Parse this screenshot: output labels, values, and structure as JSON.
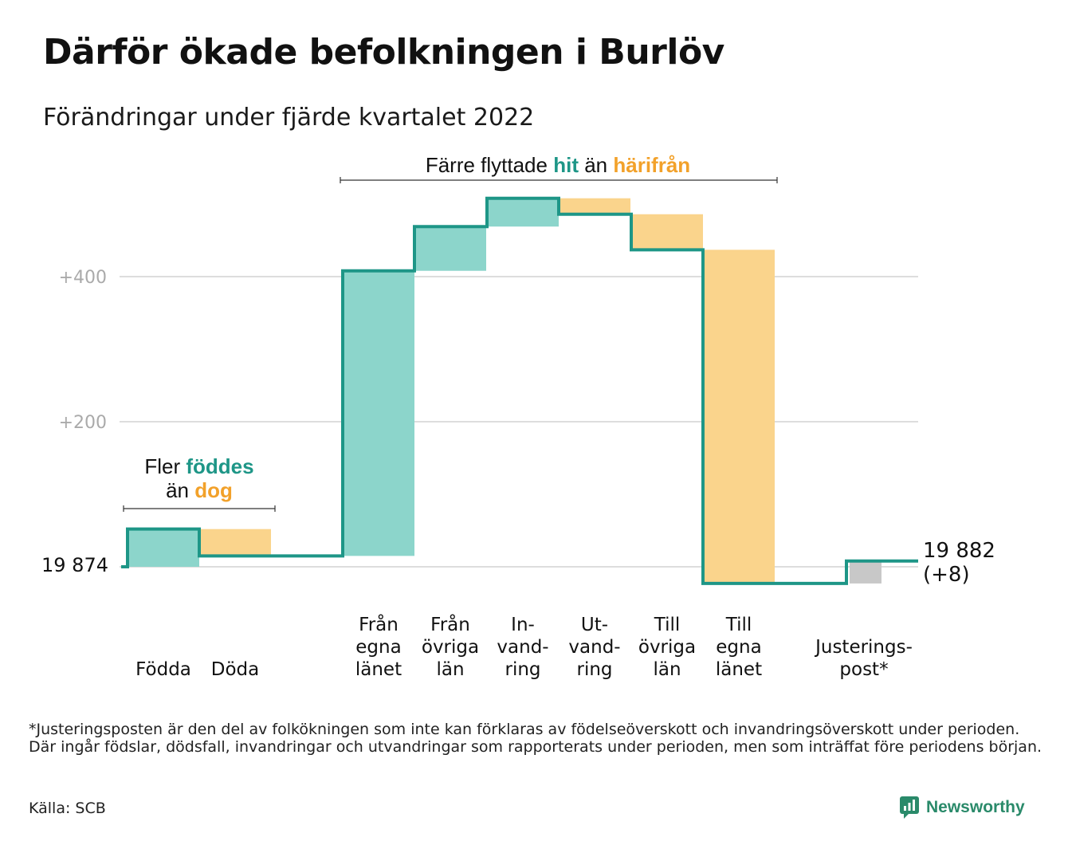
{
  "title": "Därför ökade befolkningen i Burlöv",
  "subtitle": "Förändringar under fjärde kvartalet 2022",
  "footnote": "*Justeringsposten är den del av folkökningen som inte kan förklaras av födelseöverskott och invandringsöverskott under perioden. Där ingår födslar, dödsfall, invandringar och utvandringar som rapporterats under perioden, men som inträffat före periodens början.",
  "source": "Källa: SCB",
  "brand": {
    "name": "Newsworthy",
    "icon": "newsworthy-logo-icon"
  },
  "colors": {
    "increase": "#8cd5cb",
    "decrease": "#fad48c",
    "adjustment": "#c8c8c8",
    "step_line": "#1e9687",
    "teal_text": "#1e9687",
    "orange_text": "#f2a12a",
    "grid": "#dddddd",
    "tick_text": "#aaaaaa"
  },
  "chart_data": {
    "type": "waterfall",
    "start_value": 19874,
    "start_label": "19 874",
    "end_value": 19882,
    "end_label": "19 882",
    "end_change_label": "(+8)",
    "y_ticks": [
      {
        "value": 200,
        "label": "+200"
      },
      {
        "value": 400,
        "label": "+400"
      }
    ],
    "ylim": [
      -30,
      520
    ],
    "grid": true,
    "steps": [
      {
        "label": [
          "Födda"
        ],
        "value": 52,
        "kind": "increase"
      },
      {
        "label": [
          "Döda"
        ],
        "value": -37,
        "kind": "decrease"
      },
      {
        "label": [
          "Från",
          "egna",
          "länet"
        ],
        "value": 393,
        "kind": "increase"
      },
      {
        "label": [
          "Från",
          "övriga",
          "län"
        ],
        "value": 61,
        "kind": "increase"
      },
      {
        "label": [
          "In-",
          "vand-",
          "ring"
        ],
        "value": 39,
        "kind": "increase"
      },
      {
        "label": [
          "Ut-",
          "vand-",
          "ring"
        ],
        "value": -22,
        "kind": "decrease"
      },
      {
        "label": [
          "Till",
          "övriga",
          "län"
        ],
        "value": -49,
        "kind": "decrease"
      },
      {
        "label": [
          "Till",
          "egna",
          "länet"
        ],
        "value": -460,
        "kind": "decrease"
      },
      {
        "label": [
          "Justerings-",
          "post*"
        ],
        "value": 31,
        "kind": "adjustment"
      }
    ],
    "annotations": [
      {
        "lines": [
          [
            {
              "text": "Fler ",
              "style": "plain"
            },
            {
              "text": "föddes",
              "style": "teal"
            }
          ],
          [
            {
              "text": "än ",
              "style": "plain"
            },
            {
              "text": "dog",
              "style": "orange"
            }
          ]
        ]
      },
      {
        "lines": [
          [
            {
              "text": "Färre flyttade ",
              "style": "plain"
            },
            {
              "text": "hit",
              "style": "teal"
            },
            {
              "text": " än ",
              "style": "plain"
            },
            {
              "text": "härifrån",
              "style": "orange"
            }
          ]
        ]
      }
    ]
  }
}
